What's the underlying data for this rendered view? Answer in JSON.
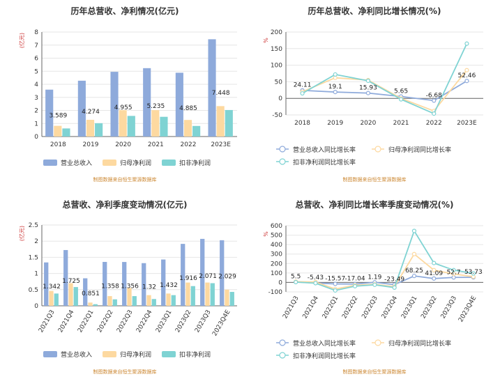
{
  "colors": {
    "revenue": "#8eaadb",
    "net_profit": "#fdd9a0",
    "deducted_profit": "#7fd3d3"
  },
  "chart_data": [
    {
      "id": "p0",
      "type": "bar",
      "title": "历年总营收、净利情况(亿元)",
      "unit_label": "(亿元)",
      "categories": [
        "2018",
        "2019",
        "2020",
        "2021",
        "2022",
        "2023E"
      ],
      "ylim": [
        0,
        8
      ],
      "yticks": [
        0,
        1,
        2,
        3,
        4,
        5,
        6,
        7,
        8
      ],
      "grid": true,
      "legend_position": "bottom",
      "series": [
        {
          "name": "营业总收入",
          "color": "#8eaadb",
          "values": [
            3.589,
            4.274,
            4.955,
            5.235,
            4.885,
            7.448
          ]
        },
        {
          "name": "归母净利润",
          "color": "#fdd9a0",
          "values": [
            0.82,
            1.28,
            2.02,
            2.02,
            1.27,
            2.33
          ]
        },
        {
          "name": "扣非净利润",
          "color": "#7fd3d3",
          "values": [
            0.62,
            1.02,
            1.58,
            1.51,
            0.81,
            2.03
          ]
        }
      ],
      "data_labels": [
        "3.589",
        "4.274",
        "4.955",
        "5.235",
        "4.885",
        "7.448"
      ],
      "source": "制图数据来自恒生聚源数据库"
    },
    {
      "id": "p1",
      "type": "line",
      "title": "历年总营收、净利同比增长情况(%)",
      "unit_label": "%",
      "categories": [
        "2018",
        "2019",
        "2020",
        "2021",
        "2022",
        "2023E"
      ],
      "ylim": [
        -50,
        200
      ],
      "yticks": [
        -50,
        0,
        50,
        100,
        150,
        200
      ],
      "grid": true,
      "legend_position": "bottom",
      "series": [
        {
          "name": "营业总收入同比增长率",
          "color": "#8eaadb",
          "values": [
            24.11,
            19.1,
            15.93,
            5.65,
            -6.68,
            52.46
          ]
        },
        {
          "name": "归母净利润同比增长率",
          "color": "#fdd9a0",
          "values": [
            20,
            62,
            55,
            0,
            -38,
            85
          ]
        },
        {
          "name": "扣非净利润同比增长率",
          "color": "#7fd3d3",
          "values": [
            15,
            72,
            53,
            -3,
            -46,
            165
          ]
        }
      ],
      "data_labels": [
        "24.11",
        "19.1",
        "15.93",
        "5.65",
        "-6.68",
        "52.46"
      ],
      "source": "制图数据来自恒生聚源数据库"
    },
    {
      "id": "p2",
      "type": "bar",
      "title": "总营收、净利季度变动情况(亿元)",
      "unit_label": "(亿元)",
      "categories": [
        "2021Q3",
        "2021Q4",
        "2022Q1",
        "2022Q2",
        "2022Q3",
        "2022Q4",
        "2023Q1",
        "2023Q2",
        "2023Q3",
        "2023Q4E"
      ],
      "ylim": [
        0,
        2.5
      ],
      "yticks": [
        0,
        0.5,
        1,
        1.5,
        2,
        2.5
      ],
      "grid": true,
      "legend_position": "bottom",
      "series": [
        {
          "name": "营业总收入",
          "color": "#8eaadb",
          "values": [
            1.342,
            1.725,
            0.851,
            1.358,
            1.356,
            1.32,
            1.432,
            1.916,
            2.071,
            2.029
          ]
        },
        {
          "name": "归母净利润",
          "color": "#fdd9a0",
          "values": [
            0.46,
            0.7,
            0.1,
            0.3,
            0.55,
            0.33,
            0.38,
            0.72,
            0.72,
            0.5
          ]
        },
        {
          "name": "扣非净利润",
          "color": "#7fd3d3",
          "values": [
            0.38,
            0.58,
            0.05,
            0.2,
            0.3,
            0.21,
            0.33,
            0.61,
            0.7,
            0.43
          ]
        }
      ],
      "data_labels": [
        "1.342",
        "1.725",
        "0.851",
        "1.358",
        "1.356",
        "1.32",
        "1.432",
        "1.916",
        "2.071",
        "2.029"
      ],
      "source": "制图数据来自恒生聚源数据库"
    },
    {
      "id": "p3",
      "type": "line",
      "title": "总营收、净利同比增长率季度变动情况(%)",
      "unit_label": "%",
      "categories": [
        "2021Q3",
        "2021Q4",
        "2022Q1",
        "2022Q2",
        "2022Q3",
        "2022Q4",
        "2023Q1",
        "2023Q2",
        "2023Q3",
        "2023Q4E"
      ],
      "ylim": [
        -100,
        600
      ],
      "yticks": [
        -100,
        0,
        100,
        200,
        300,
        400,
        500,
        600
      ],
      "grid": true,
      "legend_position": "bottom",
      "series": [
        {
          "name": "营业总收入同比增长率",
          "color": "#8eaadb",
          "values": [
            5.5,
            -5.43,
            -15.57,
            -17.04,
            1.19,
            -23.49,
            68.25,
            41.09,
            52.7,
            53.73
          ]
        },
        {
          "name": "归母净利润同比增长率",
          "color": "#fdd9a0",
          "values": [
            8,
            5,
            -70,
            -30,
            -20,
            -45,
            300,
            130,
            90,
            60
          ]
        },
        {
          "name": "扣非净利润同比增长率",
          "color": "#7fd3d3",
          "values": [
            3,
            -8,
            -85,
            -40,
            -25,
            -55,
            545,
            205,
            130,
            95
          ]
        }
      ],
      "data_labels": [
        "5.5",
        "-5.43",
        "-15.57",
        "-17.04",
        "1.19",
        "-23.49",
        "68.25",
        "41.09",
        "52.7",
        "53.73"
      ],
      "source": "制图数据来自恒生聚源数据库"
    }
  ]
}
